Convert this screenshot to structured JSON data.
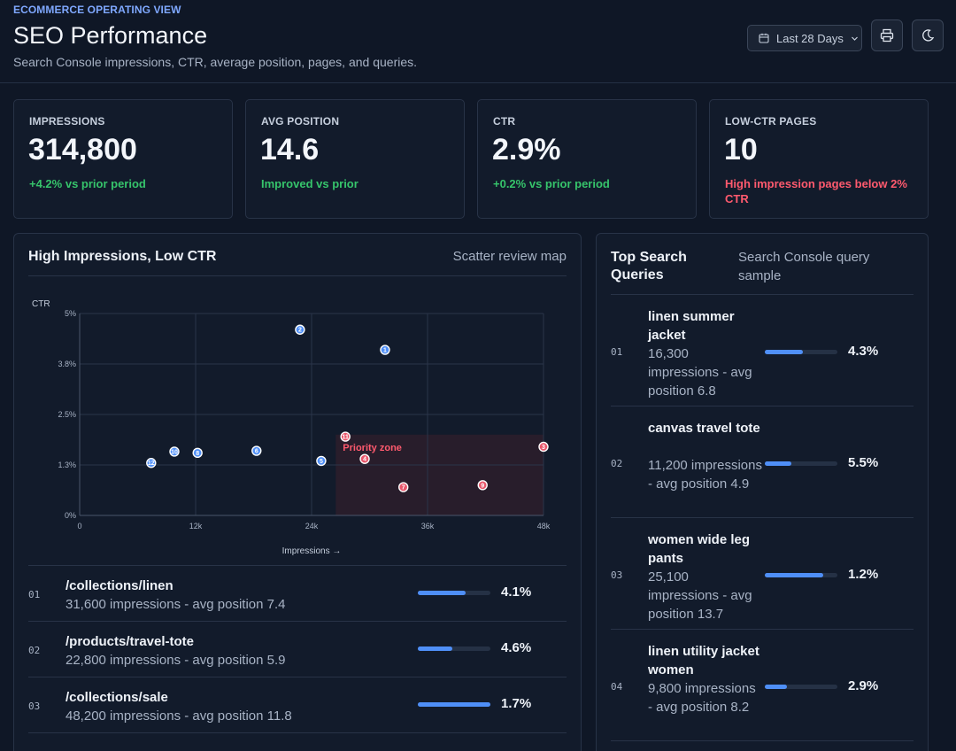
{
  "header": {
    "eyebrow": "ECOMMERCE OPERATING VIEW",
    "title": "SEO Performance",
    "subtitle": "Search Console impressions, CTR, average position, pages, and queries.",
    "date_range": "Last 28 Days"
  },
  "kpis": [
    {
      "label": "IMPRESSIONS",
      "value": "314,800",
      "delta": "+4.2% vs prior period",
      "tone": "positive"
    },
    {
      "label": "AVG POSITION",
      "value": "14.6",
      "delta": "Improved vs prior",
      "tone": "positive"
    },
    {
      "label": "CTR",
      "value": "2.9%",
      "delta": "+0.2% vs prior period",
      "tone": "positive"
    },
    {
      "label": "LOW-CTR PAGES",
      "value": "10",
      "delta": "High impression pages below 2% CTR",
      "tone": "negative"
    }
  ],
  "scatter_panel": {
    "title": "High Impressions, Low CTR",
    "aside": "Scatter review map"
  },
  "chart_data": {
    "type": "scatter",
    "ylabel": "CTR",
    "xlabel": "Impressions →",
    "xlim": [
      0,
      48000
    ],
    "ylim": [
      0,
      5
    ],
    "x_ticks": [
      {
        "value": 0,
        "label": "0"
      },
      {
        "value": 12000,
        "label": "12k"
      },
      {
        "value": 24000,
        "label": "24k"
      },
      {
        "value": 36000,
        "label": "36k"
      },
      {
        "value": 48000,
        "label": "48k"
      }
    ],
    "y_ticks": [
      {
        "value": 0,
        "label": "0%"
      },
      {
        "value": 1.25,
        "label": "1.3%"
      },
      {
        "value": 2.5,
        "label": "2.5%"
      },
      {
        "value": 3.75,
        "label": "3.8%"
      },
      {
        "value": 5,
        "label": "5%"
      }
    ],
    "zone": {
      "label": "Priority zone",
      "x": [
        26500,
        48000
      ],
      "y": [
        0,
        2.0
      ]
    },
    "points": [
      {
        "id": "1",
        "x": 31600,
        "y": 4.1,
        "flag": "ok"
      },
      {
        "id": "2",
        "x": 22800,
        "y": 4.6,
        "flag": "ok"
      },
      {
        "id": "3",
        "x": 48200,
        "y": 1.7,
        "flag": "low"
      },
      {
        "id": "4",
        "x": 29500,
        "y": 1.4,
        "flag": "low"
      },
      {
        "id": "5",
        "x": 25000,
        "y": 1.35,
        "flag": "ok"
      },
      {
        "id": "6",
        "x": 18300,
        "y": 1.6,
        "flag": "ok"
      },
      {
        "id": "7",
        "x": 33500,
        "y": 0.7,
        "flag": "low"
      },
      {
        "id": "8",
        "x": 12200,
        "y": 1.55,
        "flag": "ok"
      },
      {
        "id": "9",
        "x": 41700,
        "y": 0.75,
        "flag": "low"
      },
      {
        "id": "10",
        "x": 9800,
        "y": 1.58,
        "flag": "ok"
      },
      {
        "id": "11",
        "x": 27500,
        "y": 1.95,
        "flag": "low"
      },
      {
        "id": "12",
        "x": 7400,
        "y": 1.3,
        "flag": "ok"
      }
    ]
  },
  "pages": [
    {
      "rank": "01",
      "path": "/collections/linen",
      "meta": "31,600 impressions - avg position 7.4",
      "ctr": "4.1%",
      "bar": 0.66
    },
    {
      "rank": "02",
      "path": "/products/travel-tote",
      "meta": "22,800 impressions - avg position 5.9",
      "ctr": "4.6%",
      "bar": 0.47
    },
    {
      "rank": "03",
      "path": "/collections/sale",
      "meta": "48,200 impressions - avg position 11.8",
      "ctr": "1.7%",
      "bar": 1.0
    }
  ],
  "queries_panel": {
    "title": "Top Search Queries",
    "aside": "Search Console query sample"
  },
  "queries": [
    {
      "rank": "01",
      "name": "linen summer jacket",
      "meta": "16,300 impressions - avg position 6.8",
      "ctr": "4.3%",
      "bar": 0.52
    },
    {
      "rank": "02",
      "name": "canvas travel tote",
      "meta": "11,200 impressions - avg position 4.9",
      "ctr": "5.5%",
      "bar": 0.36
    },
    {
      "rank": "03",
      "name": "women wide leg pants",
      "meta": "25,100 impressions - avg position 13.7",
      "ctr": "1.2%",
      "bar": 0.81
    },
    {
      "rank": "04",
      "name": "linen utility jacket women",
      "meta": "9,800 impressions - avg position 8.2",
      "ctr": "2.9%",
      "bar": 0.31
    }
  ]
}
